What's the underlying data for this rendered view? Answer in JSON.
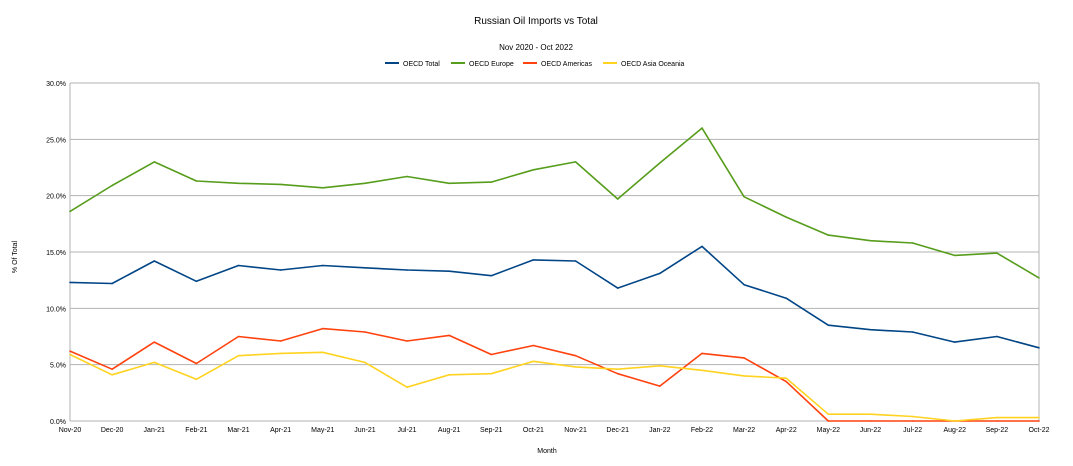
{
  "chart_data": {
    "type": "line",
    "title": "Russian Oil Imports vs Total",
    "subtitle": "Nov 2020 - Oct 2022",
    "xlabel": "Month",
    "ylabel": "% Of Total",
    "ylim": [
      0,
      30
    ],
    "yticks": [
      "0.0%",
      "5.0%",
      "10.0%",
      "15.0%",
      "20.0%",
      "25.0%",
      "30.0%"
    ],
    "grid": true,
    "legend": "top-center",
    "categories": [
      "Nov-20",
      "Dec-20",
      "Jan-21",
      "Feb-21",
      "Mar-21",
      "Apr-21",
      "May-21",
      "Jun-21",
      "Jul-21",
      "Aug-21",
      "Sep-21",
      "Oct-21",
      "Nov-21",
      "Dec-21",
      "Jan-22",
      "Feb-22",
      "Mar-22",
      "Apr-22",
      "May-22",
      "Jun-22",
      "Jul-22",
      "Aug-22",
      "Sep-22",
      "Oct-22"
    ],
    "series": [
      {
        "name": "OECD Total",
        "color": "#004586",
        "values": [
          12.3,
          12.2,
          14.2,
          12.4,
          13.8,
          13.4,
          13.8,
          13.6,
          13.4,
          13.3,
          12.9,
          14.3,
          14.2,
          11.8,
          13.1,
          15.5,
          12.1,
          10.9,
          8.5,
          8.1,
          7.9,
          7.0,
          7.5,
          6.5
        ]
      },
      {
        "name": "OECD Europe",
        "color": "#579d1c",
        "values": [
          18.6,
          20.9,
          23.0,
          21.3,
          21.1,
          21.0,
          20.7,
          21.1,
          21.7,
          21.1,
          21.2,
          22.3,
          23.0,
          19.7,
          22.9,
          26.0,
          19.9,
          18.1,
          16.5,
          16.0,
          15.8,
          14.7,
          14.9,
          12.7
        ]
      },
      {
        "name": "OECD Americas",
        "color": "#ff420e",
        "values": [
          6.2,
          4.6,
          7.0,
          5.1,
          7.5,
          7.1,
          8.2,
          7.9,
          7.1,
          7.6,
          5.9,
          6.7,
          5.8,
          4.2,
          3.1,
          6.0,
          5.6,
          3.5,
          0.0,
          0.0,
          0.0,
          0.0,
          0.0,
          0.0
        ]
      },
      {
        "name": "OECD Asia Oceania",
        "color": "#ffd320",
        "values": [
          5.9,
          4.1,
          5.2,
          3.7,
          5.8,
          6.0,
          6.1,
          5.2,
          3.0,
          4.1,
          4.2,
          5.3,
          4.8,
          4.6,
          4.9,
          4.5,
          4.0,
          3.8,
          0.6,
          0.6,
          0.4,
          0.0,
          0.3,
          0.3
        ]
      }
    ]
  }
}
